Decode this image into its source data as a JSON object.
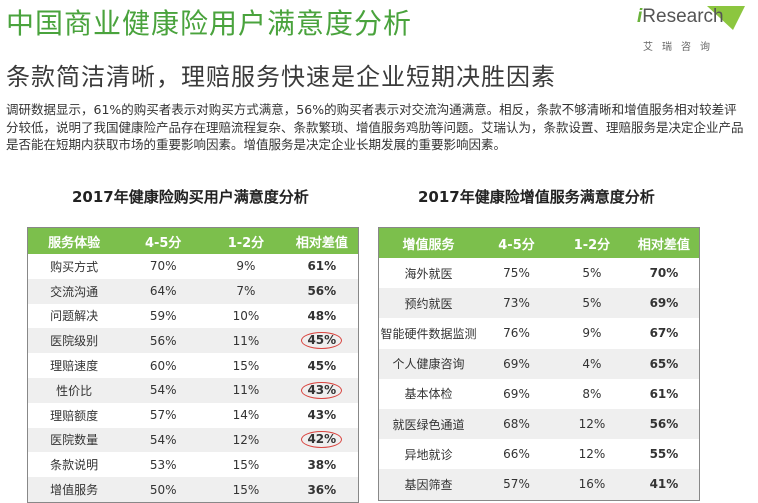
{
  "header": {
    "title": "中国商业健康险用户满意度分析",
    "subtitle": "条款简洁清晰，理赔服务快速是企业短期决胜因素"
  },
  "logo": {
    "brand_i": "i",
    "brand_rest": "Research",
    "tagline": "艾瑞咨询",
    "accent_color": "#6ab23b"
  },
  "intro": "调研数据显示，61%的购买者表示对购买方式满意，56%的购买者表示对交流沟通满意。相反，条款不够清晰和增值服务相对较差评分较低，说明了我国健康险产品存在理赔流程复杂、条款繁琐、增值服务鸡肋等问题。艾瑞认为，条款设置、理赔服务是决定企业产品是否能在短期内获取市场的重要影响因素。增值服务是决定企业长期发展的重要影响因素。",
  "table1": {
    "title": "2017年健康险购买用户满意度分析",
    "headers": [
      "服务体验",
      "4-5分",
      "1-2分",
      "相对差值"
    ],
    "rows": [
      {
        "name": "购买方式",
        "high": "70%",
        "low": "9%",
        "diff": "61%",
        "circled": false
      },
      {
        "name": "交流沟通",
        "high": "64%",
        "low": "7%",
        "diff": "56%",
        "circled": false
      },
      {
        "name": "问题解决",
        "high": "59%",
        "low": "10%",
        "diff": "48%",
        "circled": false
      },
      {
        "name": "医院级别",
        "high": "56%",
        "low": "11%",
        "diff": "45%",
        "circled": true
      },
      {
        "name": "理赔速度",
        "high": "60%",
        "low": "15%",
        "diff": "45%",
        "circled": false
      },
      {
        "name": "性价比",
        "high": "54%",
        "low": "11%",
        "diff": "43%",
        "circled": true
      },
      {
        "name": "理赔额度",
        "high": "57%",
        "low": "14%",
        "diff": "43%",
        "circled": false
      },
      {
        "name": "医院数量",
        "high": "54%",
        "low": "12%",
        "diff": "42%",
        "circled": true
      },
      {
        "name": "条款说明",
        "high": "53%",
        "low": "15%",
        "diff": "38%",
        "circled": false
      },
      {
        "name": "增值服务",
        "high": "50%",
        "low": "15%",
        "diff": "36%",
        "circled": false
      }
    ]
  },
  "table2": {
    "title": "2017年健康险增值服务满意度分析",
    "headers": [
      "增值服务",
      "4-5分",
      "1-2分",
      "相对差值"
    ],
    "rows": [
      {
        "name": "海外就医",
        "high": "75%",
        "low": "5%",
        "diff": "70%"
      },
      {
        "name": "预约就医",
        "high": "73%",
        "low": "5%",
        "diff": "69%"
      },
      {
        "name": "智能硬件数据监测",
        "high": "76%",
        "low": "9%",
        "diff": "67%"
      },
      {
        "name": "个人健康咨询",
        "high": "69%",
        "low": "4%",
        "diff": "65%"
      },
      {
        "name": "基本体检",
        "high": "69%",
        "low": "8%",
        "diff": "61%"
      },
      {
        "name": "就医绿色通道",
        "high": "68%",
        "low": "12%",
        "diff": "56%"
      },
      {
        "name": "异地就诊",
        "high": "66%",
        "low": "12%",
        "diff": "55%"
      },
      {
        "name": "基因筛查",
        "high": "57%",
        "low": "16%",
        "diff": "41%"
      }
    ]
  }
}
